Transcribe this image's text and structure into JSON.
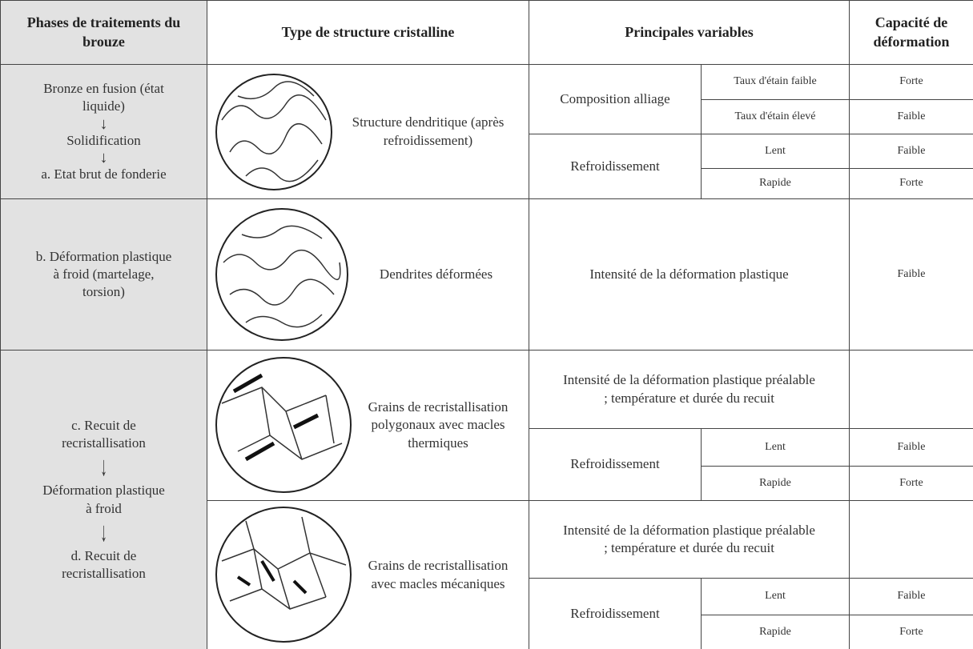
{
  "header": {
    "phases": "Phases de traitements du brouze",
    "structure": "Type de structure cristalline",
    "variables": "Principales variables",
    "capacity": "Capacité de déformation"
  },
  "rows": [
    {
      "phases": [
        "Bronze en fusion (état liquide)",
        "Solidification",
        "a. Etat brut de fonderie"
      ],
      "structure": "Structure dendritique (après refroidissement)",
      "variables": [
        {
          "name": "Composition alliage",
          "options": [
            {
              "label": "Taux d'étain faible",
              "capacity": "Forte"
            },
            {
              "label": "Taux d'étain élevé",
              "capacity": "Faible"
            }
          ]
        },
        {
          "name": "Refroidissement",
          "options": [
            {
              "label": "Lent",
              "capacity": "Faible"
            },
            {
              "label": "Rapide",
              "capacity": "Forte"
            }
          ]
        }
      ]
    },
    {
      "phases": [
        "b. Déformation plastique à froid (martelage, torsion)"
      ],
      "structure": "Dendrites déformées",
      "variables": [
        {
          "name": "Intensité de la déformation plastique",
          "capacity": "Faible"
        }
      ]
    },
    {
      "phases": [
        "c. Recuit de recristallisation",
        "Déformation plastique à froid",
        "d. Recuit de recristallisation"
      ],
      "steps": [
        {
          "structure": "Grains de recristallisation polygonaux avec macles thermiques",
          "variables": [
            {
              "name": "Intensité de la déformation plastique préalable ; température et durée du recuit"
            },
            {
              "name": "Refroidissement",
              "options": [
                {
                  "label": "Lent",
                  "capacity": "Faible"
                },
                {
                  "label": "Rapide",
                  "capacity": "Forte"
                }
              ]
            }
          ]
        },
        {
          "structure": "Grains de recristallisation avec macles mécaniques",
          "variables": [
            {
              "name": "Intensité de la déformation plastique préalable ; température et durée du recuit"
            },
            {
              "name": "Refroidissement",
              "options": [
                {
                  "label": "Lent",
                  "capacity": "Faible"
                },
                {
                  "label": "Rapide",
                  "capacity": "Forte"
                }
              ]
            }
          ]
        }
      ]
    }
  ]
}
